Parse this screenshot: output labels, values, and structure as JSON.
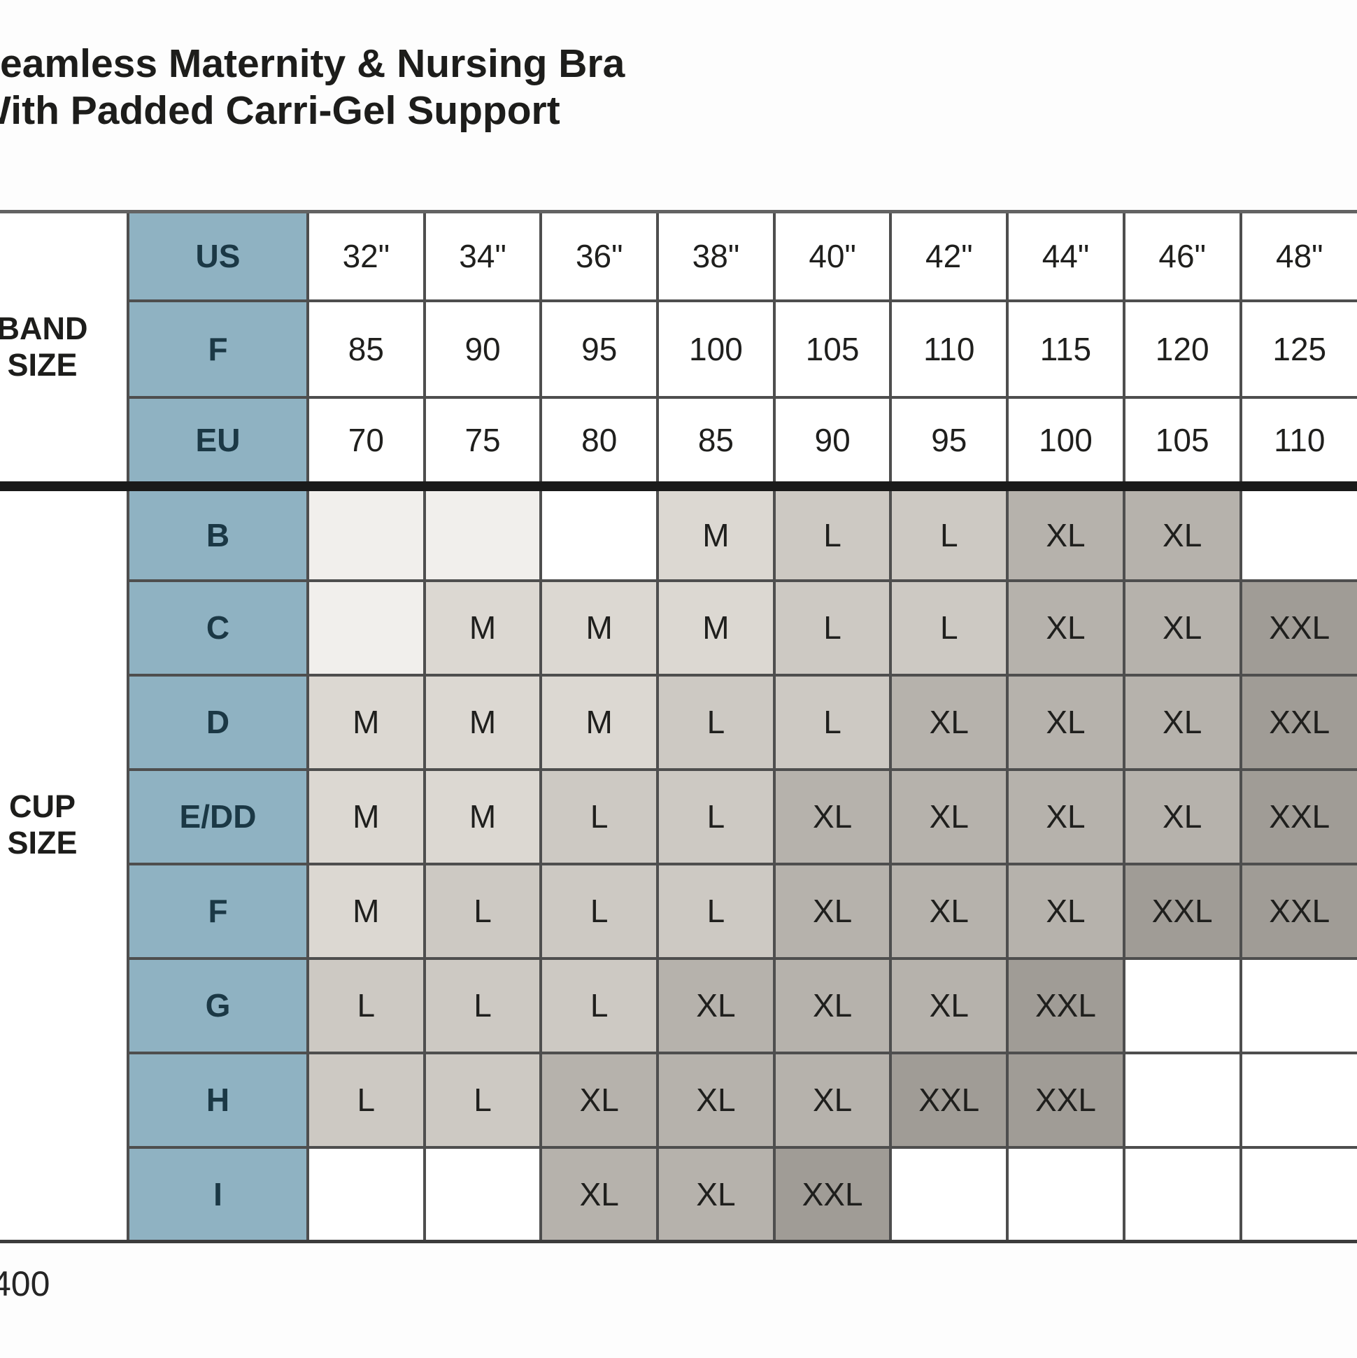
{
  "title": {
    "line1": "Seamless Maternity & Nursing Bra",
    "line2": "With Padded Carri-Gel Support"
  },
  "footnote": "400",
  "table": {
    "band_section_label": "BAND SIZE",
    "cup_section_label": "CUP SIZE",
    "band_rows": [
      {
        "label": "US",
        "values": [
          "32\"",
          "34\"",
          "36\"",
          "38\"",
          "40\"",
          "42\"",
          "44\"",
          "46\"",
          "48\""
        ]
      },
      {
        "label": "F",
        "values": [
          "85",
          "90",
          "95",
          "100",
          "105",
          "110",
          "115",
          "120",
          "125"
        ]
      },
      {
        "label": "EU",
        "values": [
          "70",
          "75",
          "80",
          "85",
          "90",
          "95",
          "100",
          "105",
          "110"
        ]
      }
    ],
    "cup_rows": [
      {
        "label": "B",
        "cells": [
          {
            "t": "",
            "s": "tint"
          },
          {
            "t": "",
            "s": "tint"
          },
          {
            "t": "",
            "s": "none"
          },
          {
            "t": "M",
            "s": "m"
          },
          {
            "t": "L",
            "s": "l"
          },
          {
            "t": "L",
            "s": "l"
          },
          {
            "t": "XL",
            "s": "xl"
          },
          {
            "t": "XL",
            "s": "xl"
          },
          {
            "t": "",
            "s": "none"
          }
        ]
      },
      {
        "label": "C",
        "cells": [
          {
            "t": "",
            "s": "tint"
          },
          {
            "t": "M",
            "s": "m"
          },
          {
            "t": "M",
            "s": "m"
          },
          {
            "t": "M",
            "s": "m"
          },
          {
            "t": "L",
            "s": "l"
          },
          {
            "t": "L",
            "s": "l"
          },
          {
            "t": "XL",
            "s": "xl"
          },
          {
            "t": "XL",
            "s": "xl"
          },
          {
            "t": "XXL",
            "s": "xxl"
          }
        ]
      },
      {
        "label": "D",
        "cells": [
          {
            "t": "M",
            "s": "m"
          },
          {
            "t": "M",
            "s": "m"
          },
          {
            "t": "M",
            "s": "m"
          },
          {
            "t": "L",
            "s": "l"
          },
          {
            "t": "L",
            "s": "l"
          },
          {
            "t": "XL",
            "s": "xl"
          },
          {
            "t": "XL",
            "s": "xl"
          },
          {
            "t": "XL",
            "s": "xl"
          },
          {
            "t": "XXL",
            "s": "xxl"
          }
        ]
      },
      {
        "label": "E/DD",
        "cells": [
          {
            "t": "M",
            "s": "m"
          },
          {
            "t": "M",
            "s": "m"
          },
          {
            "t": "L",
            "s": "l"
          },
          {
            "t": "L",
            "s": "l"
          },
          {
            "t": "XL",
            "s": "xl"
          },
          {
            "t": "XL",
            "s": "xl"
          },
          {
            "t": "XL",
            "s": "xl"
          },
          {
            "t": "XL",
            "s": "xl"
          },
          {
            "t": "XXL",
            "s": "xxl"
          }
        ]
      },
      {
        "label": "F",
        "cells": [
          {
            "t": "M",
            "s": "m"
          },
          {
            "t": "L",
            "s": "l"
          },
          {
            "t": "L",
            "s": "l"
          },
          {
            "t": "L",
            "s": "l"
          },
          {
            "t": "XL",
            "s": "xl"
          },
          {
            "t": "XL",
            "s": "xl"
          },
          {
            "t": "XL",
            "s": "xl"
          },
          {
            "t": "XXL",
            "s": "xxl"
          },
          {
            "t": "XXL",
            "s": "xxl"
          }
        ]
      },
      {
        "label": "G",
        "cells": [
          {
            "t": "L",
            "s": "l"
          },
          {
            "t": "L",
            "s": "l"
          },
          {
            "t": "L",
            "s": "l"
          },
          {
            "t": "XL",
            "s": "xl"
          },
          {
            "t": "XL",
            "s": "xl"
          },
          {
            "t": "XL",
            "s": "xl"
          },
          {
            "t": "XXL",
            "s": "xxl"
          },
          {
            "t": "",
            "s": "none"
          },
          {
            "t": "",
            "s": "none"
          }
        ]
      },
      {
        "label": "H",
        "cells": [
          {
            "t": "L",
            "s": "l"
          },
          {
            "t": "L",
            "s": "l"
          },
          {
            "t": "XL",
            "s": "xl"
          },
          {
            "t": "XL",
            "s": "xl"
          },
          {
            "t": "XL",
            "s": "xl"
          },
          {
            "t": "XXL",
            "s": "xxl"
          },
          {
            "t": "XXL",
            "s": "xxl"
          },
          {
            "t": "",
            "s": "none"
          },
          {
            "t": "",
            "s": "none"
          }
        ]
      },
      {
        "label": "I",
        "cells": [
          {
            "t": "",
            "s": "none"
          },
          {
            "t": "",
            "s": "none"
          },
          {
            "t": "XL",
            "s": "xl"
          },
          {
            "t": "XL",
            "s": "xl"
          },
          {
            "t": "XXL",
            "s": "xxl"
          },
          {
            "t": "",
            "s": "none"
          },
          {
            "t": "",
            "s": "none"
          },
          {
            "t": "",
            "s": "none"
          },
          {
            "t": "",
            "s": "none"
          }
        ]
      }
    ]
  },
  "colors": {
    "header_blue": "#8FB2C2",
    "blue_text": "#1B3845",
    "body_text": "#1F1F1D",
    "grid_line": "#4E4E4E",
    "thick_separator": "#1A1A1A",
    "shade_empty_tint": "#F1EFEC",
    "shade_m": "#DCD8D2",
    "shade_l": "#CDC9C3",
    "shade_xl": "#B6B2AC",
    "shade_xxl": "#A09C96"
  }
}
